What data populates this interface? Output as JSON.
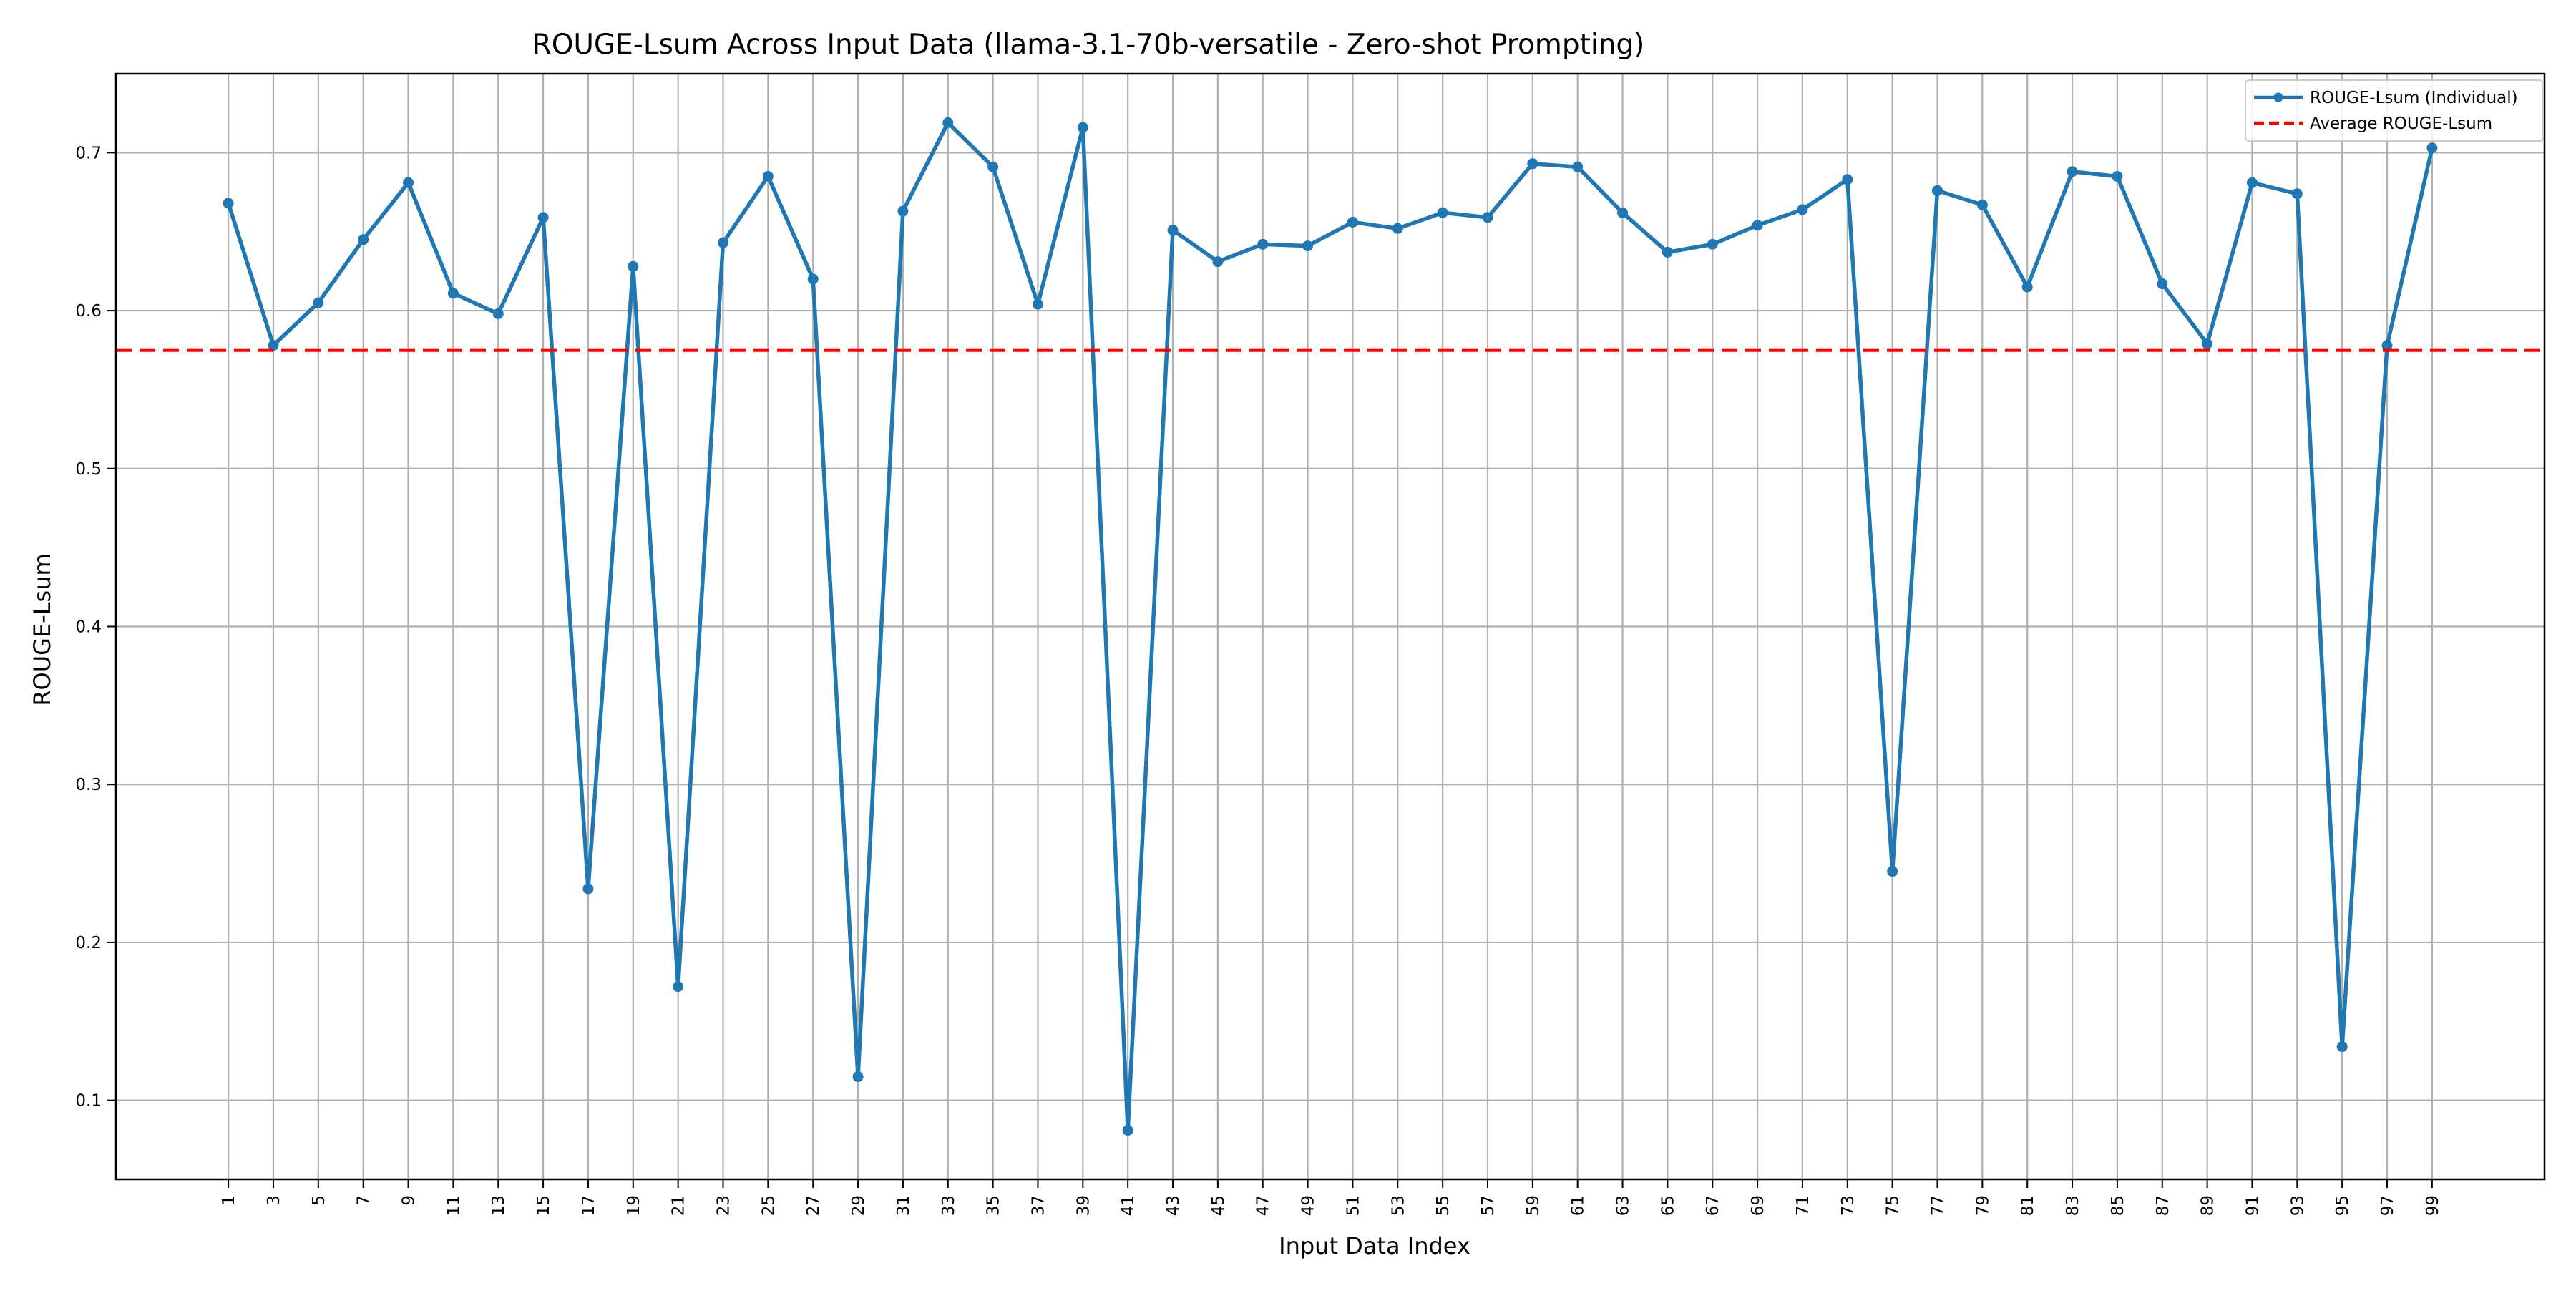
{
  "chart_data": {
    "type": "line",
    "title": "ROUGE-Lsum Across Input Data (llama-3.1-70b-versatile - Zero-shot Prompting)",
    "xlabel": "Input Data Index",
    "ylabel": "ROUGE-Lsum",
    "x": [
      1,
      3,
      5,
      7,
      9,
      11,
      13,
      15,
      17,
      19,
      21,
      23,
      25,
      27,
      29,
      31,
      33,
      35,
      37,
      39,
      41,
      43,
      45,
      47,
      49,
      51,
      53,
      55,
      57,
      59,
      61,
      63,
      65,
      67,
      69,
      71,
      73,
      75,
      77,
      79,
      81,
      83,
      85,
      87,
      89,
      91,
      93,
      95,
      97,
      99
    ],
    "x_tick_labels": [
      "1",
      "3",
      "5",
      "7",
      "9",
      "11",
      "13",
      "15",
      "17",
      "19",
      "21",
      "23",
      "25",
      "27",
      "29",
      "31",
      "33",
      "35",
      "37",
      "39",
      "41",
      "43",
      "45",
      "47",
      "49",
      "51",
      "53",
      "55",
      "57",
      "59",
      "61",
      "63",
      "65",
      "67",
      "69",
      "71",
      "73",
      "75",
      "77",
      "79",
      "81",
      "83",
      "85",
      "87",
      "89",
      "91",
      "93",
      "95",
      "97",
      "99"
    ],
    "xlim": [
      -4,
      104
    ],
    "ylim": [
      0.05,
      0.75
    ],
    "y_ticks": [
      0.1,
      0.2,
      0.3,
      0.4,
      0.5,
      0.6,
      0.7
    ],
    "y_tick_labels": [
      "0.1",
      "0.2",
      "0.3",
      "0.4",
      "0.5",
      "0.6",
      "0.7"
    ],
    "grid": true,
    "legend_position": "top-right",
    "series": [
      {
        "name": "ROUGE-Lsum (Individual)",
        "style": "solid-line-with-markers",
        "color": "#1f77b4",
        "values": [
          0.668,
          0.578,
          0.605,
          0.645,
          0.681,
          0.611,
          0.598,
          0.659,
          0.234,
          0.628,
          0.172,
          0.643,
          0.685,
          0.62,
          0.115,
          0.663,
          0.719,
          0.691,
          0.604,
          0.716,
          0.081,
          0.651,
          0.631,
          0.642,
          0.641,
          0.656,
          0.652,
          0.662,
          0.659,
          0.693,
          0.691,
          0.662,
          0.637,
          0.642,
          0.654,
          0.664,
          0.683,
          0.245,
          0.676,
          0.667,
          0.615,
          0.688,
          0.685,
          0.617,
          0.579,
          0.681,
          0.674,
          0.134,
          0.578,
          0.703
        ]
      }
    ],
    "reference_lines": [
      {
        "name": "Average ROUGE-Lsum",
        "style": "dashed",
        "color": "#ff0000",
        "y": 0.575
      }
    ]
  }
}
